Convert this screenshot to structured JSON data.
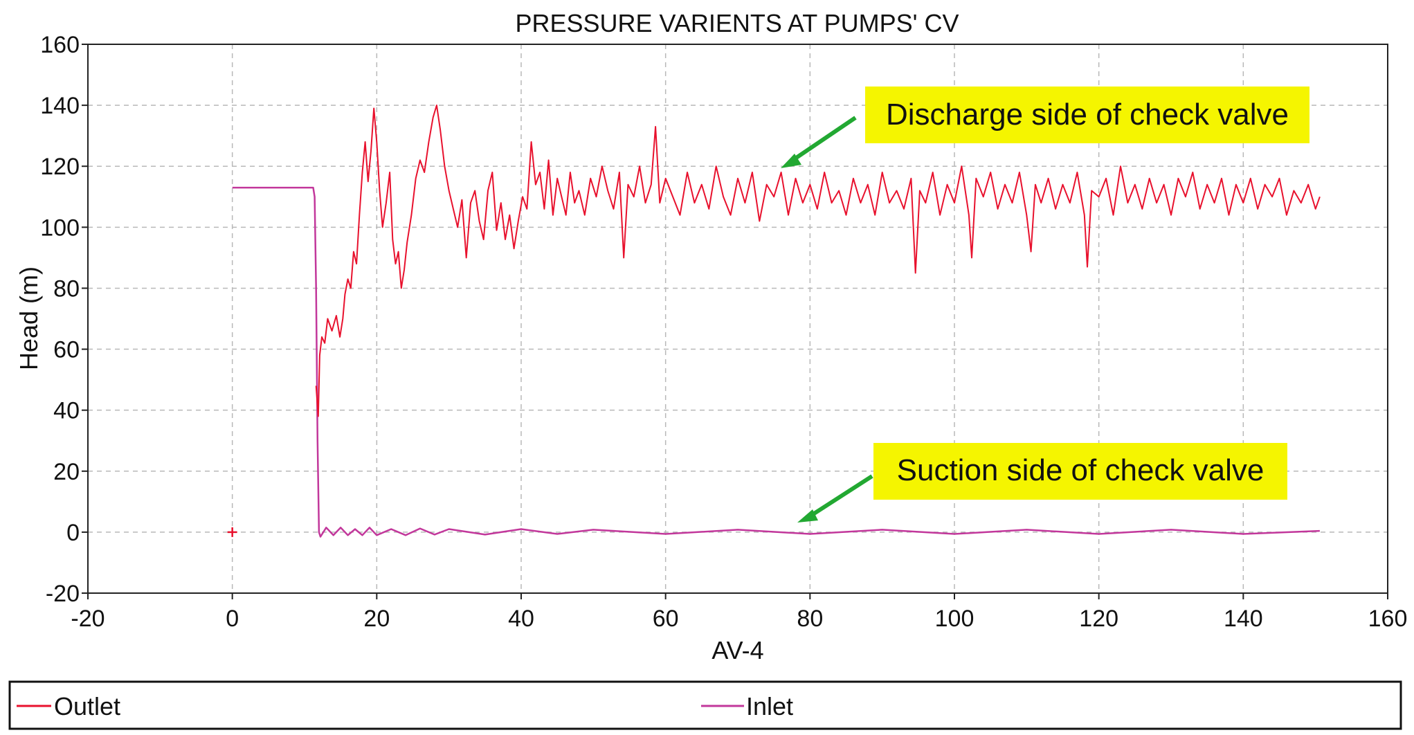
{
  "chart_data": {
    "type": "line",
    "title": "PRESSURE VARIENTS AT PUMPS' CV",
    "xlabel": "AV-4",
    "ylabel": "Head (m)",
    "xlim": [
      -20,
      160
    ],
    "ylim": [
      -20,
      160
    ],
    "xticks": [
      -20,
      0,
      20,
      40,
      60,
      80,
      100,
      120,
      140,
      160
    ],
    "yticks": [
      -20,
      0,
      20,
      40,
      60,
      80,
      100,
      120,
      140,
      160
    ],
    "grid": true,
    "legend_position": "bottom",
    "series": [
      {
        "name": "Outlet",
        "color": "#e8112d",
        "points": [
          [
            11.6,
            48
          ],
          [
            11.9,
            38
          ],
          [
            12.1,
            58
          ],
          [
            12.4,
            64
          ],
          [
            12.8,
            62
          ],
          [
            13.2,
            70
          ],
          [
            13.8,
            66
          ],
          [
            14.4,
            71
          ],
          [
            14.9,
            64
          ],
          [
            15.3,
            70
          ],
          [
            15.6,
            78
          ],
          [
            16.0,
            83
          ],
          [
            16.4,
            80
          ],
          [
            16.8,
            92
          ],
          [
            17.2,
            88
          ],
          [
            17.6,
            104
          ],
          [
            18.0,
            118
          ],
          [
            18.4,
            128
          ],
          [
            18.8,
            115
          ],
          [
            19.2,
            125
          ],
          [
            19.6,
            139
          ],
          [
            20.0,
            128
          ],
          [
            20.4,
            112
          ],
          [
            20.8,
            100
          ],
          [
            21.3,
            108
          ],
          [
            21.8,
            118
          ],
          [
            22.2,
            96
          ],
          [
            22.6,
            88
          ],
          [
            23.0,
            92
          ],
          [
            23.4,
            80
          ],
          [
            23.8,
            86
          ],
          [
            24.2,
            95
          ],
          [
            24.8,
            104
          ],
          [
            25.4,
            116
          ],
          [
            26.0,
            122
          ],
          [
            26.6,
            118
          ],
          [
            27.2,
            128
          ],
          [
            27.8,
            136
          ],
          [
            28.3,
            140
          ],
          [
            28.8,
            132
          ],
          [
            29.4,
            120
          ],
          [
            30.0,
            112
          ],
          [
            30.6,
            106
          ],
          [
            31.2,
            100
          ],
          [
            31.8,
            109
          ],
          [
            32.4,
            90
          ],
          [
            33.0,
            108
          ],
          [
            33.6,
            112
          ],
          [
            34.2,
            102
          ],
          [
            34.8,
            96
          ],
          [
            35.4,
            112
          ],
          [
            36.0,
            118
          ],
          [
            36.6,
            99
          ],
          [
            37.2,
            108
          ],
          [
            37.8,
            96
          ],
          [
            38.4,
            104
          ],
          [
            39.0,
            93
          ],
          [
            39.6,
            102
          ],
          [
            40.2,
            110
          ],
          [
            40.8,
            106
          ],
          [
            41.4,
            128
          ],
          [
            42.0,
            114
          ],
          [
            42.6,
            118
          ],
          [
            43.2,
            106
          ],
          [
            43.8,
            122
          ],
          [
            44.4,
            104
          ],
          [
            45.0,
            116
          ],
          [
            45.6,
            110
          ],
          [
            46.2,
            104
          ],
          [
            46.8,
            118
          ],
          [
            47.4,
            108
          ],
          [
            48.0,
            112
          ],
          [
            48.8,
            104
          ],
          [
            49.6,
            116
          ],
          [
            50.4,
            110
          ],
          [
            51.2,
            120
          ],
          [
            52.0,
            112
          ],
          [
            52.8,
            106
          ],
          [
            53.6,
            118
          ],
          [
            54.2,
            90
          ],
          [
            54.8,
            114
          ],
          [
            55.6,
            110
          ],
          [
            56.4,
            120
          ],
          [
            57.2,
            108
          ],
          [
            58.0,
            114
          ],
          [
            58.6,
            133
          ],
          [
            59.2,
            108
          ],
          [
            60.0,
            116
          ],
          [
            61.0,
            110
          ],
          [
            62.0,
            104
          ],
          [
            63.0,
            118
          ],
          [
            64.0,
            108
          ],
          [
            65.0,
            114
          ],
          [
            66.0,
            106
          ],
          [
            67.0,
            120
          ],
          [
            68.0,
            110
          ],
          [
            69.0,
            104
          ],
          [
            70.0,
            116
          ],
          [
            71.0,
            108
          ],
          [
            72.0,
            118
          ],
          [
            73.0,
            102
          ],
          [
            74.0,
            114
          ],
          [
            75.0,
            110
          ],
          [
            76.0,
            118
          ],
          [
            77.0,
            104
          ],
          [
            78.0,
            116
          ],
          [
            79.0,
            108
          ],
          [
            80.0,
            114
          ],
          [
            81.0,
            106
          ],
          [
            82.0,
            118
          ],
          [
            83.0,
            108
          ],
          [
            84.0,
            112
          ],
          [
            85.0,
            104
          ],
          [
            86.0,
            116
          ],
          [
            87.0,
            108
          ],
          [
            88.0,
            114
          ],
          [
            89.0,
            104
          ],
          [
            90.0,
            118
          ],
          [
            91.0,
            108
          ],
          [
            92.0,
            112
          ],
          [
            93.0,
            106
          ],
          [
            94.0,
            116
          ],
          [
            94.6,
            85
          ],
          [
            95.2,
            112
          ],
          [
            96.0,
            108
          ],
          [
            97.0,
            118
          ],
          [
            98.0,
            104
          ],
          [
            99.0,
            114
          ],
          [
            100.0,
            108
          ],
          [
            101.0,
            120
          ],
          [
            102.0,
            104
          ],
          [
            102.4,
            90
          ],
          [
            103.0,
            116
          ],
          [
            104.0,
            110
          ],
          [
            105.0,
            118
          ],
          [
            106.0,
            106
          ],
          [
            107.0,
            114
          ],
          [
            108.0,
            108
          ],
          [
            109.0,
            118
          ],
          [
            110.0,
            104
          ],
          [
            110.6,
            92
          ],
          [
            111.2,
            114
          ],
          [
            112.0,
            108
          ],
          [
            113.0,
            116
          ],
          [
            114.0,
            106
          ],
          [
            115.0,
            114
          ],
          [
            116.0,
            108
          ],
          [
            117.0,
            118
          ],
          [
            118.0,
            104
          ],
          [
            118.4,
            87
          ],
          [
            119.0,
            112
          ],
          [
            120.0,
            110
          ],
          [
            121.0,
            116
          ],
          [
            122.0,
            104
          ],
          [
            123.0,
            120
          ],
          [
            124.0,
            108
          ],
          [
            125.0,
            114
          ],
          [
            126.0,
            106
          ],
          [
            127.0,
            116
          ],
          [
            128.0,
            108
          ],
          [
            129.0,
            114
          ],
          [
            130.0,
            104
          ],
          [
            131.0,
            116
          ],
          [
            132.0,
            110
          ],
          [
            133.0,
            118
          ],
          [
            134.0,
            106
          ],
          [
            135.0,
            114
          ],
          [
            136.0,
            108
          ],
          [
            137.0,
            116
          ],
          [
            138.0,
            104
          ],
          [
            139.0,
            114
          ],
          [
            140.0,
            108
          ],
          [
            141.0,
            116
          ],
          [
            142.0,
            106
          ],
          [
            143.0,
            114
          ],
          [
            144.0,
            110
          ],
          [
            145.0,
            116
          ],
          [
            146.0,
            104
          ],
          [
            147.0,
            112
          ],
          [
            148.0,
            108
          ],
          [
            149.0,
            114
          ],
          [
            150.0,
            106
          ],
          [
            150.6,
            110
          ]
        ]
      },
      {
        "name": "Inlet",
        "color": "#c2379b",
        "points": [
          [
            0,
            113
          ],
          [
            11.2,
            113
          ],
          [
            11.4,
            110
          ],
          [
            11.6,
            80
          ],
          [
            11.8,
            30
          ],
          [
            12.0,
            0
          ],
          [
            12.2,
            -1.5
          ],
          [
            13.0,
            1.5
          ],
          [
            14.0,
            -1
          ],
          [
            15.0,
            1.5
          ],
          [
            16.0,
            -1
          ],
          [
            17.0,
            1
          ],
          [
            18.0,
            -1
          ],
          [
            19.0,
            1.5
          ],
          [
            20.0,
            -1
          ],
          [
            22.0,
            1
          ],
          [
            24.0,
            -1
          ],
          [
            26.0,
            1.2
          ],
          [
            28.0,
            -0.8
          ],
          [
            30.0,
            1
          ],
          [
            35.0,
            -0.8
          ],
          [
            40.0,
            1
          ],
          [
            45.0,
            -0.6
          ],
          [
            50.0,
            0.8
          ],
          [
            60.0,
            -0.6
          ],
          [
            70.0,
            0.8
          ],
          [
            80.0,
            -0.6
          ],
          [
            90.0,
            0.8
          ],
          [
            100.0,
            -0.6
          ],
          [
            110.0,
            0.8
          ],
          [
            120.0,
            -0.6
          ],
          [
            130.0,
            0.8
          ],
          [
            140.0,
            -0.6
          ],
          [
            150.6,
            0.4
          ]
        ]
      }
    ],
    "annotations": [
      {
        "text": "Discharge side of check valve",
        "points_to": [
          75,
          121
        ]
      },
      {
        "text": "Suction side of check valve",
        "points_to": [
          78,
          4
        ]
      }
    ],
    "marker": {
      "name": "origin-marker",
      "x": 0,
      "y": 0,
      "color": "#e8112d"
    }
  }
}
